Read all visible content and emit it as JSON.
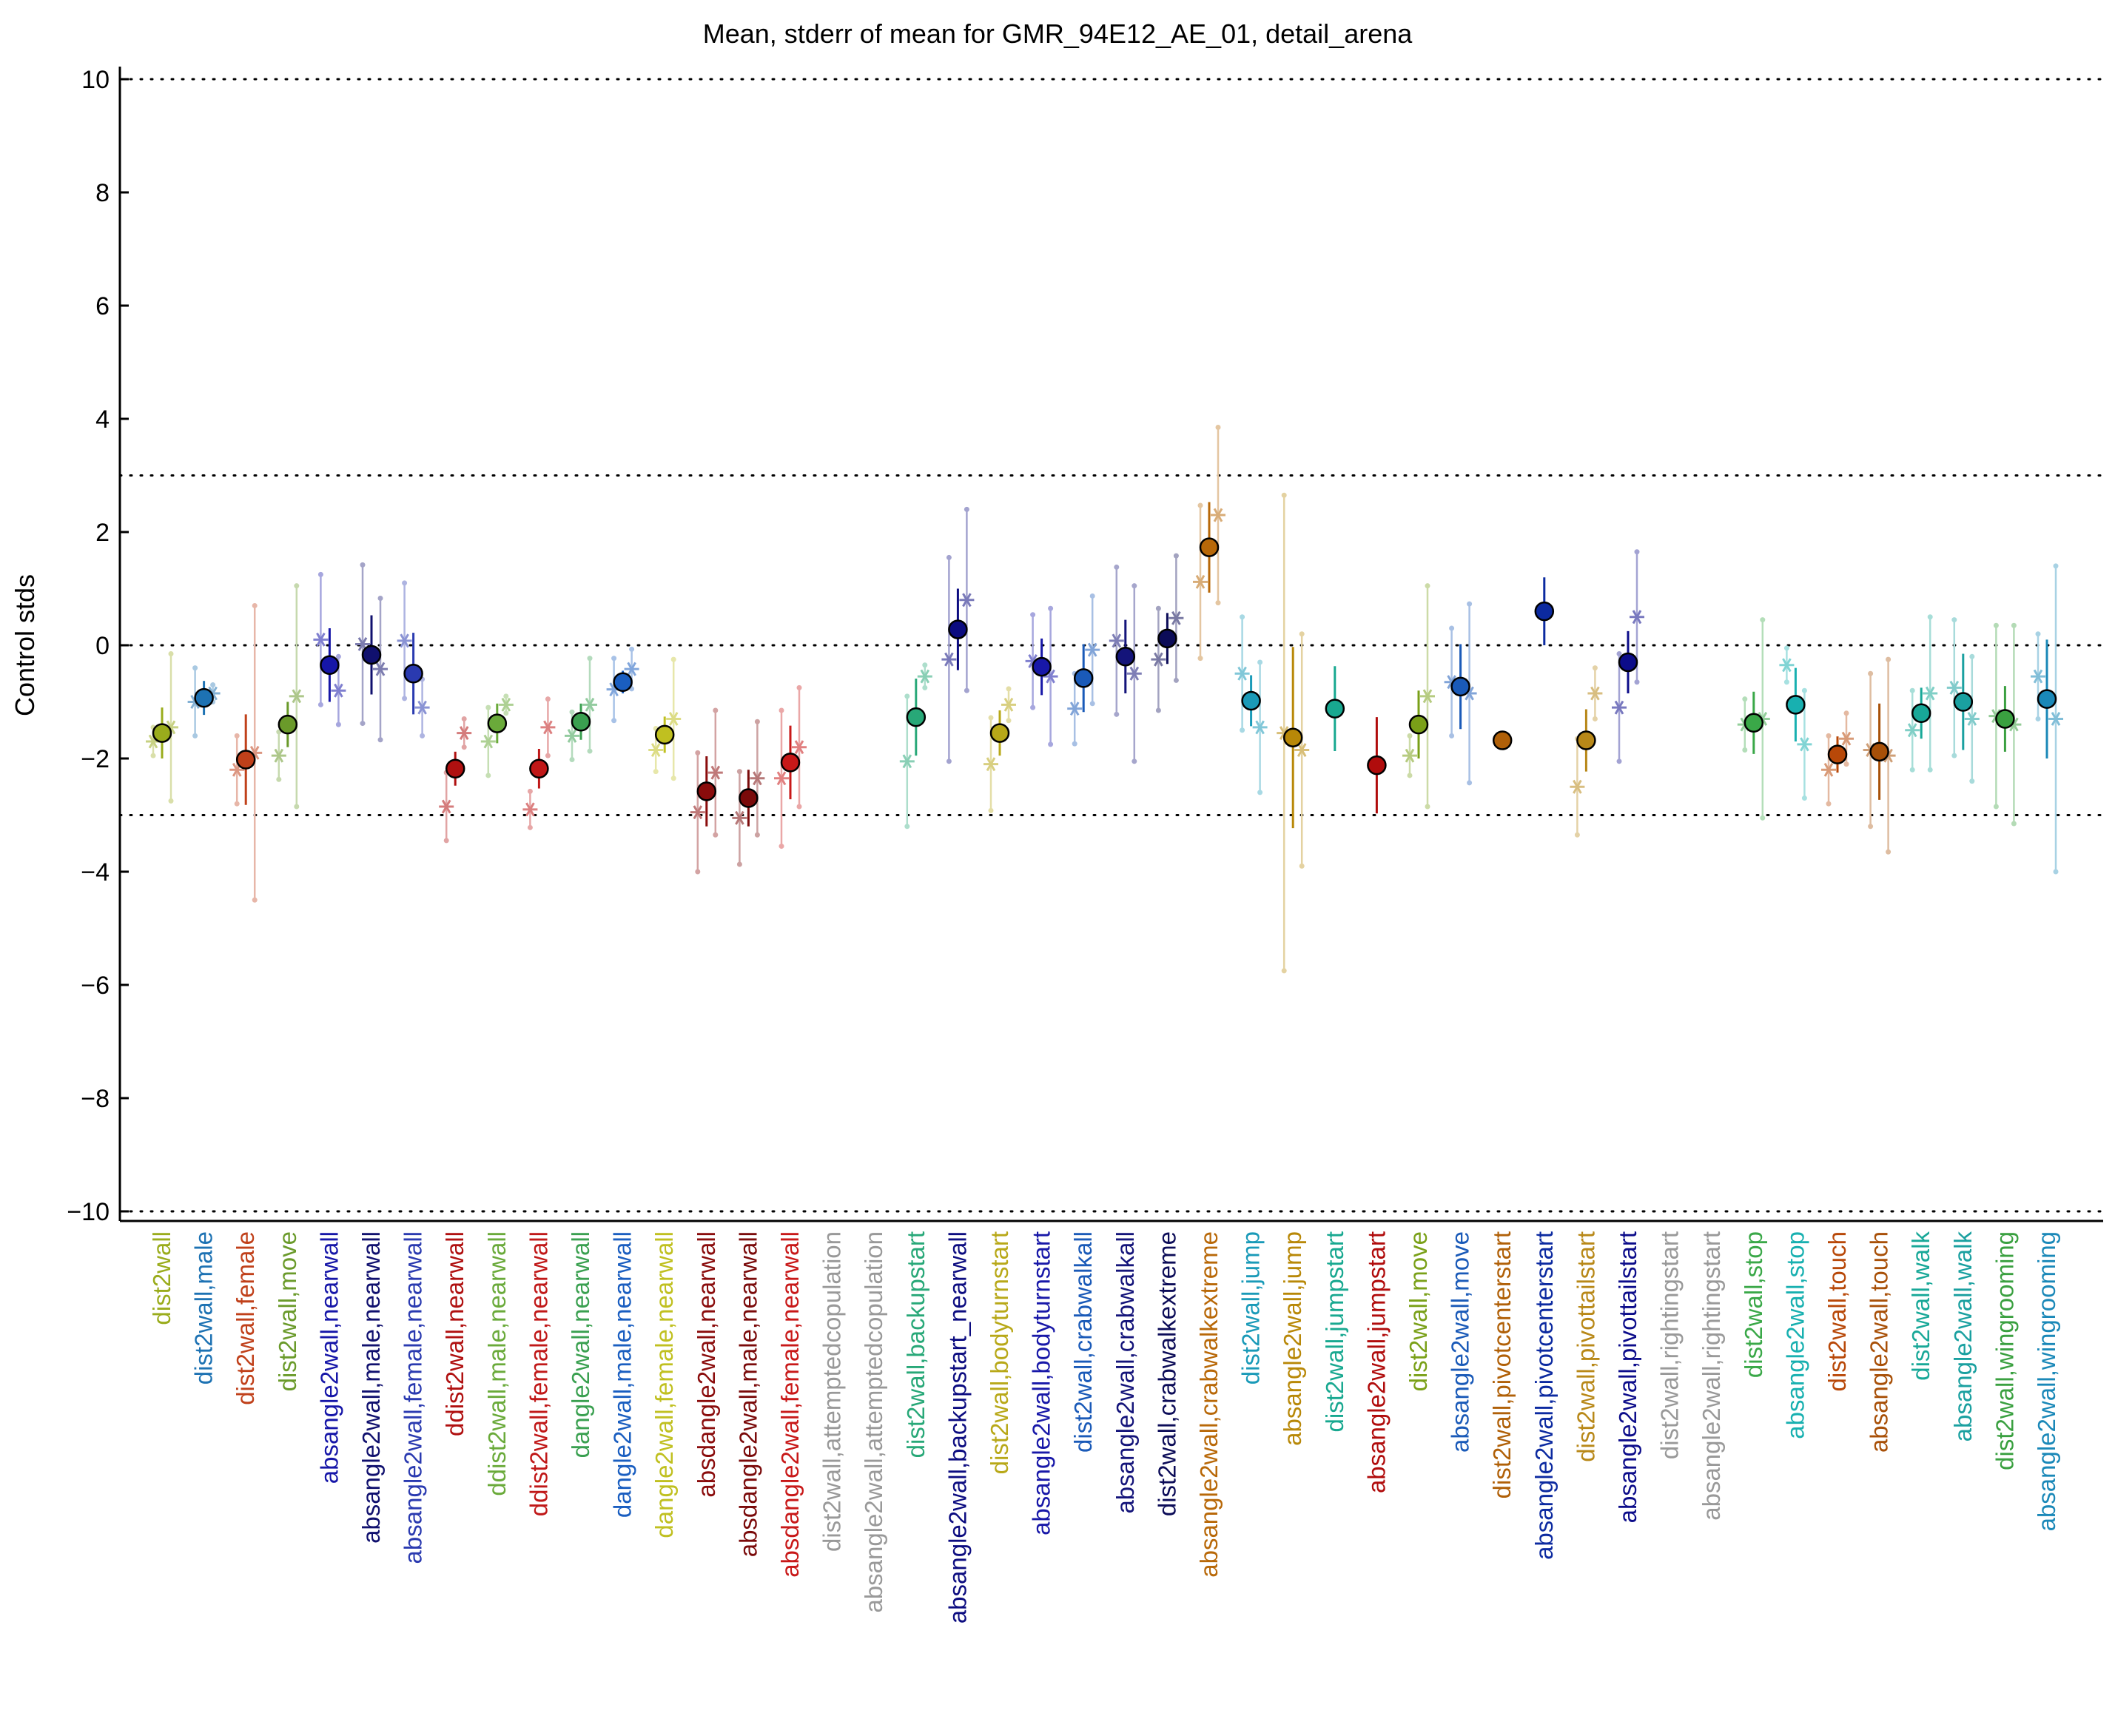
{
  "chart_data": {
    "type": "scatter",
    "title": "Mean, stderr of mean for GMR_94E12_AE_01, detail_arena",
    "xlabel": "",
    "ylabel": "Control stds",
    "ylim": [
      -10,
      10
    ],
    "yticks": [
      -10,
      -8,
      -6,
      -4,
      -2,
      0,
      2,
      4,
      6,
      8,
      10
    ],
    "ytick_labels": [
      "−10",
      "−8",
      "−6",
      "−4",
      "−2",
      "0",
      "2",
      "4",
      "6",
      "8",
      "10"
    ],
    "reference_lines": [
      10,
      3,
      0,
      -3,
      -10
    ],
    "grid": false,
    "legend": "none",
    "categories": [
      "dist2wall",
      "dist2wall,male",
      "dist2wall,female",
      "dist2wall,move",
      "absangle2wall,nearwall",
      "absangle2wall,male,nearwall",
      "absangle2wall,female,nearwall",
      "ddist2wall,nearwall",
      "ddist2wall,male,nearwall",
      "ddist2wall,female,nearwall",
      "dangle2wall,nearwall",
      "dangle2wall,male,nearwall",
      "dangle2wall,female,nearwall",
      "absdangle2wall,nearwall",
      "absdangle2wall,male,nearwall",
      "absdangle2wall,female,nearwall",
      "dist2wall,attemptedcopulation",
      "absangle2wall,attemptedcopulation",
      "dist2wall,backupstart",
      "absangle2wall,backupstart_nearwall",
      "dist2wall,bodyturnstart",
      "absangle2wall,bodyturnstart",
      "dist2wall,crabwalkall",
      "absangle2wall,crabwalkall",
      "dist2wall,crabwalkextreme",
      "absangle2wall,crabwalkextreme",
      "dist2wall,jump",
      "absangle2wall,jump",
      "dist2wall,jumpstart",
      "absangle2wall,jumpstart",
      "dist2wall,move",
      "absangle2wall,move",
      "dist2wall,pivotcenterstart",
      "absangle2wall,pivotcenterstart",
      "dist2wall,pivottailstart",
      "absangle2wall,pivottailstart",
      "dist2wall,rightingstart",
      "absangle2wall,rightingstart",
      "dist2wall,stop",
      "absangle2wall,stop",
      "dist2wall,touch",
      "absangle2wall,touch",
      "dist2wall,walk",
      "absangle2wall,walk",
      "dist2wall,wingrooming",
      "absangle2wall,wingrooming"
    ],
    "colors": [
      "#9aac1c",
      "#1d72b3",
      "#c0401a",
      "#6a9a2a",
      "#1616a8",
      "#10106e",
      "#2a3ab0",
      "#b01010",
      "#6aaa3a",
      "#c01818",
      "#3aa050",
      "#1a5ec0",
      "#c0c020",
      "#8a0c0c",
      "#7a0a0a",
      "#c81818",
      "#999999",
      "#999999",
      "#28a878",
      "#0c0c80",
      "#b8a818",
      "#1818a8",
      "#1a5ab8",
      "#14147a",
      "#0c0c58",
      "#b86808",
      "#1a9ab8",
      "#b88808",
      "#18a890",
      "#b00c0c",
      "#7aa018",
      "#1a5ab8",
      "#b06008",
      "#0c2aa0",
      "#b88818",
      "#0c0c8a",
      "#999999",
      "#999999",
      "#3aa848",
      "#18b0b0",
      "#b84808",
      "#a85008",
      "#18a898",
      "#1aa0a0",
      "#3aa040",
      "#1a88b8"
    ],
    "means": [
      -1.55,
      -0.93,
      -2.02,
      -1.4,
      -0.35,
      -0.17,
      -0.5,
      -2.18,
      -1.38,
      -2.18,
      -1.35,
      -0.65,
      -1.58,
      -2.58,
      -2.7,
      -2.07,
      null,
      null,
      -1.27,
      0.28,
      -1.55,
      -0.38,
      -0.58,
      -0.2,
      0.12,
      1.73,
      -0.98,
      -1.63,
      -1.12,
      -2.12,
      -1.4,
      -0.73,
      -1.68,
      0.6,
      -1.68,
      -0.3,
      null,
      null,
      -1.37,
      -1.05,
      -1.93,
      -1.88,
      -1.2,
      -1.0,
      -1.3,
      -0.95
    ],
    "stderr": [
      0.45,
      0.3,
      0.8,
      0.4,
      0.65,
      0.7,
      0.72,
      0.3,
      0.35,
      0.35,
      0.32,
      0.2,
      0.32,
      0.62,
      0.5,
      0.65,
      null,
      null,
      0.68,
      0.72,
      0.4,
      0.5,
      0.6,
      0.65,
      0.45,
      0.8,
      0.45,
      1.6,
      0.75,
      0.85,
      0.6,
      0.75,
      0.1,
      0.6,
      0.55,
      0.55,
      null,
      null,
      0.55,
      0.65,
      0.32,
      0.85,
      0.45,
      0.85,
      0.58,
      1.05
    ],
    "per_group": [
      [
        [
          -1.7,
          0.25
        ],
        [
          -1.45,
          1.3
        ]
      ],
      [
        [
          -1.0,
          0.6
        ],
        [
          -0.85,
          0.15
        ]
      ],
      [
        [
          -2.2,
          0.6
        ],
        [
          -1.9,
          2.6
        ]
      ],
      [
        [
          -1.95,
          0.42
        ],
        [
          -0.9,
          1.95
        ]
      ],
      [
        [
          0.1,
          1.15
        ],
        [
          -0.8,
          0.6
        ]
      ],
      [
        [
          0.02,
          1.4
        ],
        [
          -0.42,
          1.25
        ]
      ],
      [
        [
          0.08,
          1.02
        ],
        [
          -1.1,
          0.5
        ]
      ],
      [
        [
          -2.85,
          0.6
        ],
        [
          -1.55,
          0.25
        ]
      ],
      [
        [
          -1.7,
          0.6
        ],
        [
          -1.05,
          0.15
        ]
      ],
      [
        [
          -2.9,
          0.32
        ],
        [
          -1.45,
          0.5
        ]
      ],
      [
        [
          -1.6,
          0.42
        ],
        [
          -1.05,
          0.82
        ]
      ],
      [
        [
          -0.78,
          0.55
        ],
        [
          -0.42,
          0.35
        ]
      ],
      [
        [
          -1.85,
          0.38
        ],
        [
          -1.3,
          1.05
        ]
      ],
      [
        [
          -2.95,
          1.05
        ],
        [
          -2.25,
          1.1
        ]
      ],
      [
        [
          -3.05,
          0.82
        ],
        [
          -2.35,
          1.0
        ]
      ],
      [
        [
          -2.35,
          1.2
        ],
        [
          -1.8,
          1.05
        ]
      ],
      null,
      null,
      [
        [
          -2.05,
          1.15
        ],
        [
          -0.55,
          0.2
        ]
      ],
      [
        [
          -0.25,
          1.8
        ],
        [
          0.8,
          1.6
        ]
      ],
      [
        [
          -2.1,
          0.82
        ],
        [
          -1.05,
          0.28
        ]
      ],
      [
        [
          -0.28,
          0.82
        ],
        [
          -0.55,
          1.2
        ]
      ],
      [
        [
          -1.12,
          0.62
        ],
        [
          -0.08,
          0.95
        ]
      ],
      [
        [
          0.08,
          1.3
        ],
        [
          -0.5,
          1.55
        ]
      ],
      [
        [
          -0.25,
          0.9
        ],
        [
          0.48,
          1.1
        ]
      ],
      [
        [
          1.12,
          1.35
        ],
        [
          2.3,
          1.55
        ]
      ],
      [
        [
          -0.5,
          1.0
        ],
        [
          -1.45,
          1.15
        ]
      ],
      [
        [
          -1.55,
          4.2
        ],
        [
          -1.85,
          2.05
        ]
      ],
      null,
      null,
      [
        [
          -1.95,
          0.35
        ],
        [
          -0.9,
          1.95
        ]
      ],
      [
        [
          -0.65,
          0.95
        ],
        [
          -0.85,
          1.58
        ]
      ],
      null,
      null,
      [
        [
          -2.5,
          0.85
        ],
        [
          -0.85,
          0.45
        ]
      ],
      [
        [
          -1.1,
          0.95
        ],
        [
          0.5,
          1.15
        ]
      ],
      null,
      null,
      [
        [
          -1.4,
          0.45
        ],
        [
          -1.3,
          1.75
        ]
      ],
      [
        [
          -0.35,
          0.3
        ],
        [
          -1.75,
          0.95
        ]
      ],
      [
        [
          -2.2,
          0.6
        ],
        [
          -1.65,
          0.45
        ]
      ],
      [
        [
          -1.85,
          1.35
        ],
        [
          -1.95,
          1.7
        ]
      ],
      [
        [
          -1.5,
          0.7
        ],
        [
          -0.85,
          1.35
        ]
      ],
      [
        [
          -0.75,
          1.2
        ],
        [
          -1.3,
          1.1
        ]
      ],
      [
        [
          -1.25,
          1.6
        ],
        [
          -1.4,
          1.75
        ]
      ],
      [
        [
          -0.55,
          0.75
        ],
        [
          -1.3,
          2.7
        ]
      ]
    ]
  }
}
